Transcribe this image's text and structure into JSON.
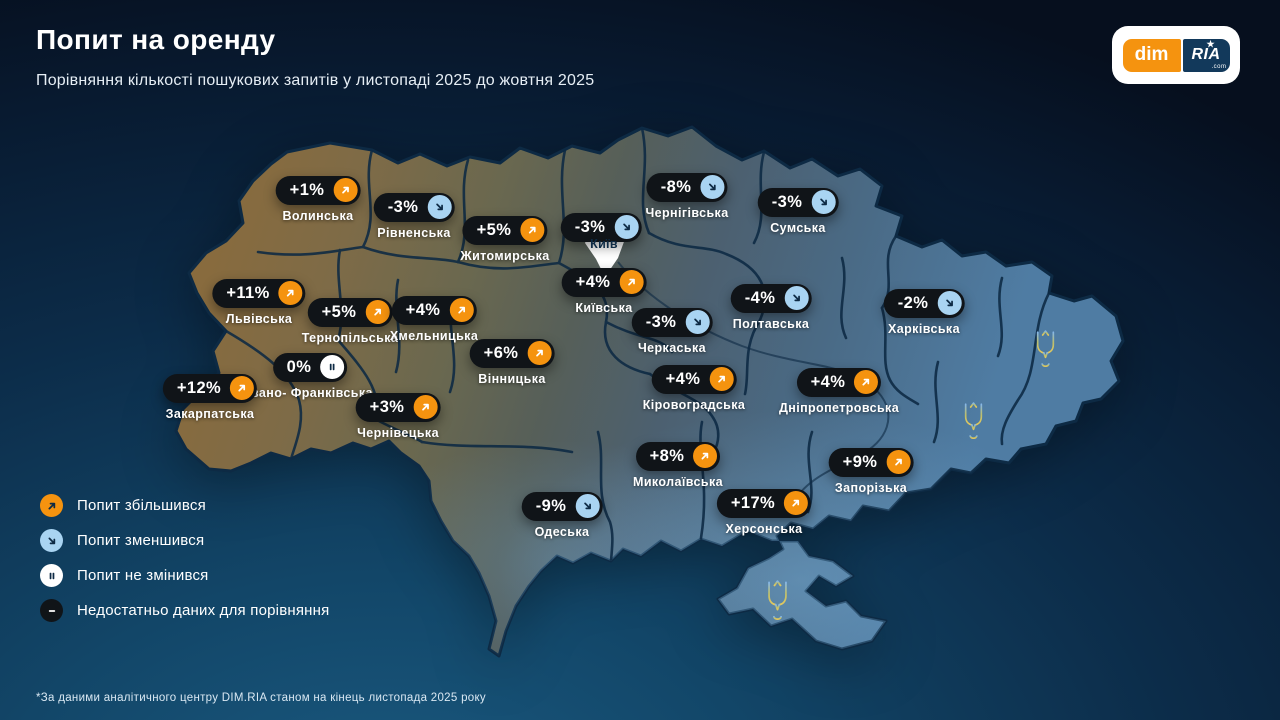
{
  "header": {
    "title": "Попит на оренду",
    "subtitle": "Порівняння кількості пошукових запитів у листопаді 2025 до жовтня 2025"
  },
  "logo": {
    "dim": "dim",
    "ria": "RIA",
    "com": ".com",
    "star": "★"
  },
  "map": {
    "kyiv_city_label": "Київ",
    "regions": [
      {
        "name": "Волинська",
        "value": "+1%",
        "trend": "up"
      },
      {
        "name": "Рівненська",
        "value": "-3%",
        "trend": "down"
      },
      {
        "name": "Житомирська",
        "value": "+5%",
        "trend": "up"
      },
      {
        "name": "Київ",
        "value": "-3%",
        "trend": "down",
        "city": true
      },
      {
        "name": "Чернігівська",
        "value": "-8%",
        "trend": "down"
      },
      {
        "name": "Сумська",
        "value": "-3%",
        "trend": "down"
      },
      {
        "name": "Львівська",
        "value": "+11%",
        "trend": "up"
      },
      {
        "name": "Тернопільська",
        "value": "+5%",
        "trend": "up"
      },
      {
        "name": "Хмельницька",
        "value": "+4%",
        "trend": "up"
      },
      {
        "name": "Київська",
        "value": "+4%",
        "trend": "up"
      },
      {
        "name": "Полтавська",
        "value": "-4%",
        "trend": "down"
      },
      {
        "name": "Харківська",
        "value": "-2%",
        "trend": "down"
      },
      {
        "name": "Івано- Франківська",
        "value": "0%",
        "trend": "same"
      },
      {
        "name": "Вінницька",
        "value": "+6%",
        "trend": "up"
      },
      {
        "name": "Черкаська",
        "value": "-3%",
        "trend": "down"
      },
      {
        "name": "Закарпатська",
        "value": "+12%",
        "trend": "up"
      },
      {
        "name": "Чернівецька",
        "value": "+3%",
        "trend": "up"
      },
      {
        "name": "Кіровоградська",
        "value": "+4%",
        "trend": "up"
      },
      {
        "name": "Дніпропетровська",
        "value": "+4%",
        "trend": "up"
      },
      {
        "name": "Миколаївська",
        "value": "+8%",
        "trend": "up"
      },
      {
        "name": "Запорізька",
        "value": "+9%",
        "trend": "up"
      },
      {
        "name": "Одеська",
        "value": "-9%",
        "trend": "down"
      },
      {
        "name": "Херсонська",
        "value": "+17%",
        "trend": "up"
      }
    ]
  },
  "legend": {
    "items": [
      {
        "icon": "up",
        "label": "Попит збільшився"
      },
      {
        "icon": "down",
        "label": "Попит зменшився"
      },
      {
        "icon": "same",
        "label": "Попит не змінився"
      },
      {
        "icon": "nodata",
        "label": "Недостатньо даних для порівняння"
      }
    ]
  },
  "footer": {
    "note": "*За даними аналітичного центру DIM.RIA станом на кінець листопада 2025 року"
  },
  "colors": {
    "up_circle": "#F5930F",
    "down_circle": "#A9D4F2",
    "same_circle": "#FFFFFF",
    "nodata_circle": "#101418",
    "arrow_dark": "#0E2B45",
    "badge_bg": "#101418"
  }
}
